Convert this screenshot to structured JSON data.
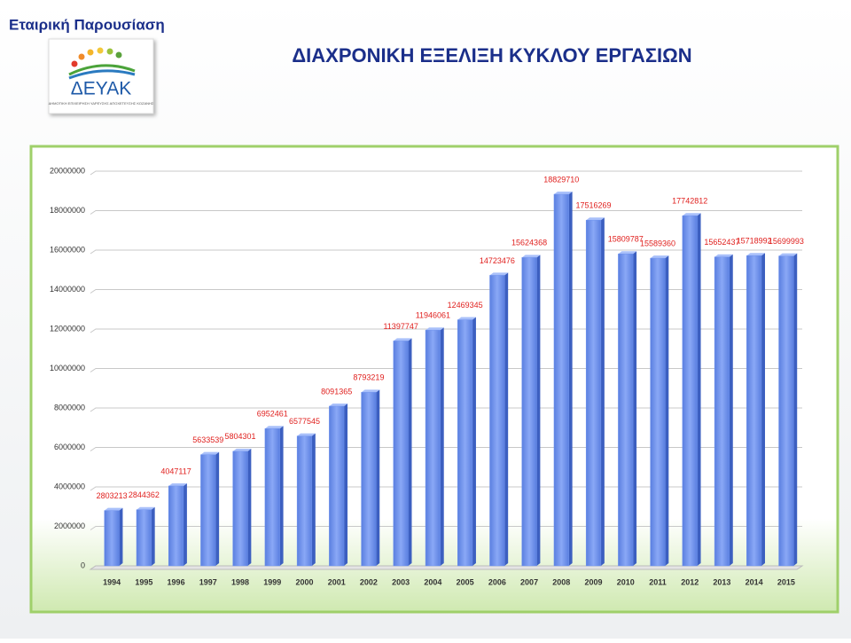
{
  "header": {
    "section": "Εταιρική Παρουσίαση",
    "logo_name": "ΔΕΥΑΚ",
    "logo_subtitle": "ΔΗΜΟΤΙΚΗ ΕΠΙΧΕΙΡΗΣΗ ΥΔΡΕΥΣΗΣ ΑΠΟΧΕΤΕΥΣΗΣ ΚΟΖΑΝΗΣ"
  },
  "chart_data": {
    "type": "bar",
    "title": "ΔΙΑΧΡΟΝΙΚΗ ΕΞΕΛΙΞΗ ΚΥΚΛΟΥ ΕΡΓΑΣΙΩΝ",
    "categories": [
      "1994",
      "1995",
      "1996",
      "1997",
      "1998",
      "1999",
      "2000",
      "2001",
      "2002",
      "2003",
      "2004",
      "2005",
      "2006",
      "2007",
      "2008",
      "2009",
      "2010",
      "2011",
      "2012",
      "2013",
      "2014",
      "2015"
    ],
    "values": [
      2803213,
      2844362,
      4047117,
      5633539,
      5804301,
      6952461,
      6577545,
      8091365,
      8793219,
      11397747,
      11946061,
      12469345,
      14723476,
      15624368,
      18829710,
      17516269,
      15809787,
      15589360,
      17742812,
      15652437,
      15718992,
      15699993
    ],
    "color": "#6f93ee",
    "label_color": "#e0201e",
    "ylim": [
      0,
      20000000
    ],
    "yticks": [
      0,
      2000000,
      4000000,
      6000000,
      8000000,
      10000000,
      12000000,
      14000000,
      16000000,
      18000000,
      20000000
    ],
    "grid": true
  }
}
